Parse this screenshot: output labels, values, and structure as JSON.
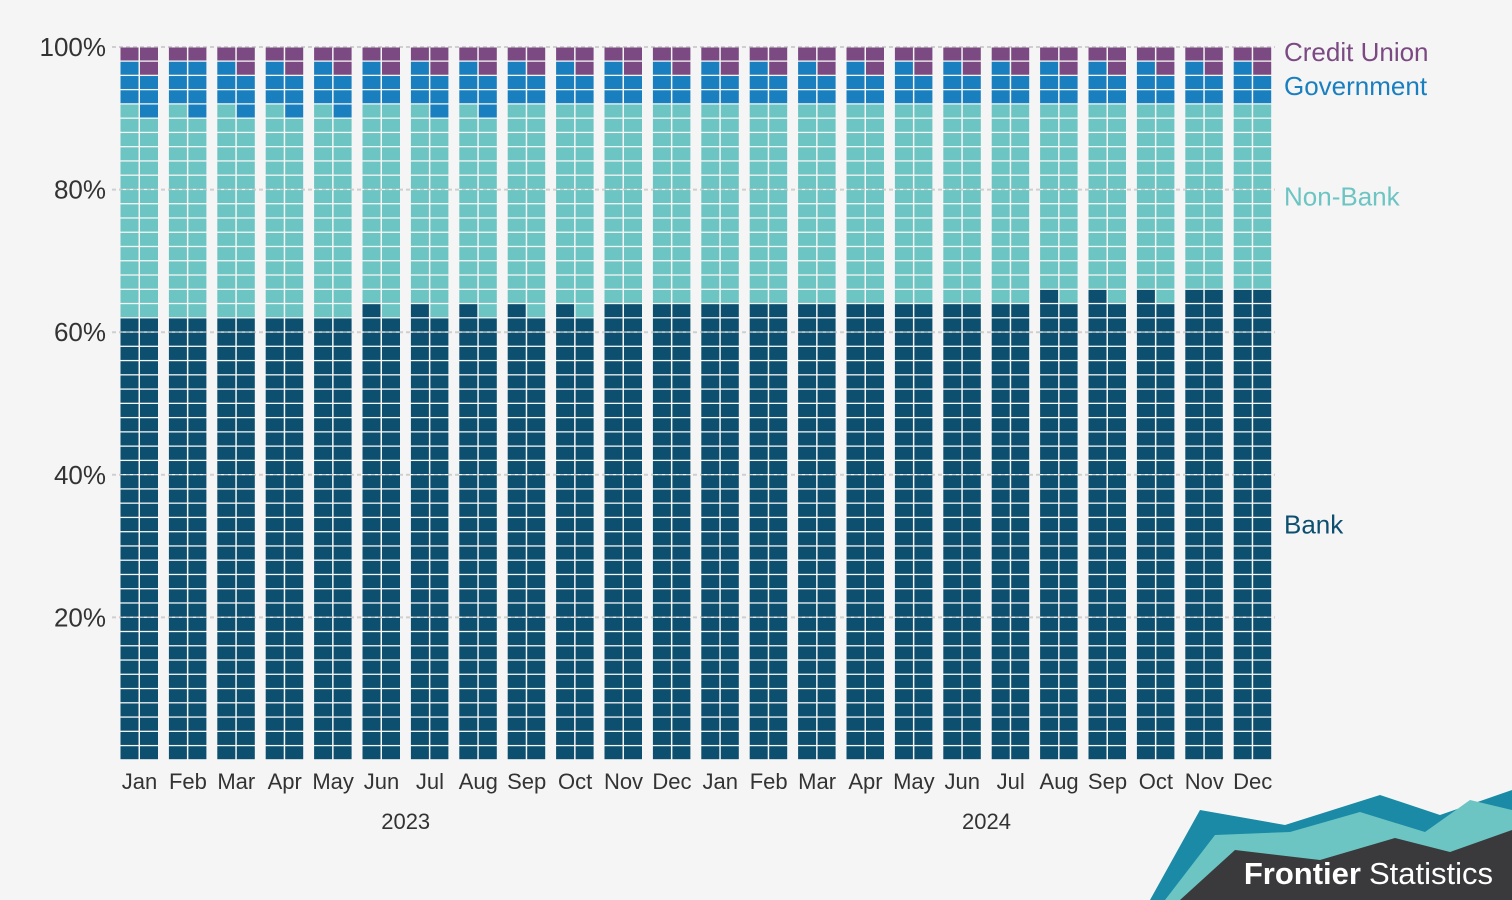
{
  "chart_data": {
    "type": "bar",
    "subtype": "stacked-waffle-percent",
    "title": "",
    "xlabel": "",
    "ylabel": "",
    "ylim": [
      0,
      100
    ],
    "ytick_labels": [
      "20%",
      "40%",
      "60%",
      "80%",
      "100%"
    ],
    "grid": true,
    "legend_position": "right, inline with series",
    "categories": [
      "Jan",
      "Feb",
      "Mar",
      "Apr",
      "May",
      "Jun",
      "Jul",
      "Aug",
      "Sep",
      "Oct",
      "Nov",
      "Dec",
      "Jan",
      "Feb",
      "Mar",
      "Apr",
      "May",
      "Jun",
      "Jul",
      "Aug",
      "Sep",
      "Oct",
      "Nov",
      "Dec"
    ],
    "year_groups": [
      {
        "label": "2023",
        "start": 0,
        "end": 11
      },
      {
        "label": "2024",
        "start": 12,
        "end": 23
      }
    ],
    "series": [
      {
        "name": "Bank",
        "color": "#0d4f6e",
        "values": [
          62,
          62,
          62,
          62,
          62,
          63,
          63,
          63,
          63,
          63,
          64,
          64,
          64,
          64,
          64,
          64,
          64,
          64,
          64,
          65,
          65,
          65,
          66,
          66
        ]
      },
      {
        "name": "Non-Bank",
        "color": "#6cc5c2",
        "values": [
          29,
          29,
          29,
          29,
          29,
          29,
          28,
          28,
          29,
          29,
          28,
          28,
          28,
          28,
          28,
          28,
          28,
          28,
          28,
          27,
          27,
          27,
          26,
          26
        ]
      },
      {
        "name": "Government",
        "color": "#1a7fbf",
        "values": [
          6,
          7,
          6,
          6,
          6,
          5,
          6,
          6,
          5,
          5,
          5,
          5,
          5,
          5,
          5,
          5,
          5,
          5,
          5,
          5,
          5,
          5,
          5,
          5
        ]
      },
      {
        "name": "Credit Union",
        "color": "#7b4a82",
        "values": [
          3,
          2,
          3,
          3,
          3,
          3,
          3,
          3,
          3,
          3,
          3,
          3,
          3,
          3,
          3,
          3,
          3,
          3,
          3,
          3,
          3,
          3,
          3,
          3
        ]
      }
    ]
  },
  "branding": {
    "bold": "Frontier",
    "regular": "Statistics",
    "colors": {
      "dark": "#3a3a3c",
      "teal": "#1a8aa6",
      "light": "#6cc5c2"
    }
  }
}
